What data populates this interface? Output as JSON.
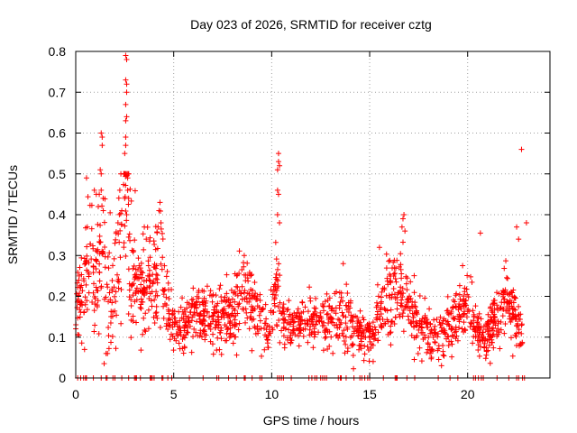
{
  "chart_data": {
    "type": "scatter",
    "title": "Day 023 of 2026, SRMTID for receiver cztg",
    "xlabel": "GPS time / hours",
    "ylabel": "SRMTID / TECUs",
    "xlim": [
      0,
      24.2
    ],
    "ylim": [
      0,
      0.8
    ],
    "xticks": [
      0,
      5,
      10,
      15,
      20
    ],
    "xtick_labels": [
      "0",
      "5",
      "10",
      "15",
      "20"
    ],
    "yticks": [
      0,
      0.1,
      0.2,
      0.3,
      0.4,
      0.5,
      0.6,
      0.7,
      0.8
    ],
    "ytick_labels": [
      "0",
      "0.1",
      "0.2",
      "0.3",
      "0.4",
      "0.5",
      "0.6",
      "0.7",
      "0.8"
    ],
    "grid": true,
    "series": [
      {
        "name": "SRMTID",
        "marker": "+",
        "color": "#ff0000",
        "profile": [
          [
            0.0,
            0.15,
            0.07
          ],
          [
            0.3,
            0.2,
            0.09
          ],
          [
            0.7,
            0.3,
            0.12
          ],
          [
            1.0,
            0.22,
            0.1
          ],
          [
            1.4,
            0.35,
            0.15
          ],
          [
            1.7,
            0.18,
            0.1
          ],
          [
            2.0,
            0.25,
            0.12
          ],
          [
            2.3,
            0.38,
            0.18
          ],
          [
            2.6,
            0.45,
            0.22
          ],
          [
            2.9,
            0.25,
            0.12
          ],
          [
            3.3,
            0.2,
            0.1
          ],
          [
            3.8,
            0.22,
            0.1
          ],
          [
            4.3,
            0.28,
            0.12
          ],
          [
            4.6,
            0.18,
            0.06
          ],
          [
            5.0,
            0.12,
            0.05
          ],
          [
            5.5,
            0.14,
            0.05
          ],
          [
            6.0,
            0.16,
            0.06
          ],
          [
            7.0,
            0.15,
            0.06
          ],
          [
            8.0,
            0.15,
            0.06
          ],
          [
            8.5,
            0.22,
            0.08
          ],
          [
            9.0,
            0.18,
            0.06
          ],
          [
            9.5,
            0.17,
            0.06
          ],
          [
            9.8,
            0.1,
            0.04
          ],
          [
            10.3,
            0.25,
            0.1
          ],
          [
            10.6,
            0.13,
            0.05
          ],
          [
            11.5,
            0.14,
            0.05
          ],
          [
            12.5,
            0.14,
            0.05
          ],
          [
            13.5,
            0.15,
            0.06
          ],
          [
            14.3,
            0.12,
            0.05
          ],
          [
            14.8,
            0.1,
            0.04
          ],
          [
            15.2,
            0.12,
            0.05
          ],
          [
            16.0,
            0.2,
            0.08
          ],
          [
            16.5,
            0.24,
            0.1
          ],
          [
            17.0,
            0.18,
            0.08
          ],
          [
            17.5,
            0.14,
            0.06
          ],
          [
            18.0,
            0.11,
            0.05
          ],
          [
            18.5,
            0.1,
            0.05
          ],
          [
            19.0,
            0.12,
            0.05
          ],
          [
            19.5,
            0.15,
            0.06
          ],
          [
            20.0,
            0.18,
            0.07
          ],
          [
            20.5,
            0.12,
            0.05
          ],
          [
            21.0,
            0.1,
            0.05
          ],
          [
            21.5,
            0.15,
            0.06
          ],
          [
            22.0,
            0.2,
            0.08
          ],
          [
            22.5,
            0.14,
            0.06
          ],
          [
            22.8,
            0.12,
            0.05
          ]
        ],
        "outliers": [
          [
            2.55,
            0.79
          ],
          [
            2.6,
            0.78
          ],
          [
            2.55,
            0.73
          ],
          [
            2.6,
            0.72
          ],
          [
            2.6,
            0.7
          ],
          [
            2.55,
            0.67
          ],
          [
            2.6,
            0.64
          ],
          [
            2.55,
            0.63
          ],
          [
            2.55,
            0.59
          ],
          [
            2.55,
            0.57
          ],
          [
            2.5,
            0.55
          ],
          [
            2.65,
            0.49
          ],
          [
            2.65,
            0.46
          ],
          [
            2.7,
            0.44
          ],
          [
            2.6,
            0.4
          ],
          [
            1.3,
            0.6
          ],
          [
            1.35,
            0.59
          ],
          [
            1.35,
            0.57
          ],
          [
            1.25,
            0.51
          ],
          [
            1.3,
            0.5
          ],
          [
            1.3,
            0.46
          ],
          [
            1.2,
            0.45
          ],
          [
            1.4,
            0.44
          ],
          [
            0.55,
            0.49
          ],
          [
            0.95,
            0.46
          ],
          [
            1.05,
            0.45
          ],
          [
            1.15,
            0.42
          ],
          [
            2.25,
            0.46
          ],
          [
            2.35,
            0.41
          ],
          [
            10.35,
            0.55
          ],
          [
            10.35,
            0.53
          ],
          [
            10.4,
            0.52
          ],
          [
            10.3,
            0.51
          ],
          [
            10.3,
            0.46
          ],
          [
            10.35,
            0.45
          ],
          [
            10.3,
            0.4
          ],
          [
            10.4,
            0.38
          ],
          [
            4.3,
            0.43
          ],
          [
            4.25,
            0.41
          ],
          [
            4.35,
            0.38
          ],
          [
            4.2,
            0.37
          ],
          [
            16.75,
            0.4
          ],
          [
            16.7,
            0.39
          ],
          [
            16.65,
            0.37
          ],
          [
            16.8,
            0.36
          ],
          [
            20.65,
            0.355
          ],
          [
            22.75,
            0.56
          ],
          [
            23.0,
            0.38
          ],
          [
            22.5,
            0.37
          ],
          [
            22.6,
            0.34
          ],
          [
            1.45,
            0.035
          ],
          [
            1.55,
            0.06
          ],
          [
            0.45,
            0.07
          ],
          [
            2.0,
            0.33
          ],
          [
            3.5,
            0.37
          ],
          [
            3.6,
            0.34
          ],
          [
            8.6,
            0.3
          ],
          [
            13.65,
            0.28
          ],
          [
            15.5,
            0.32
          ]
        ],
        "zero_hours": [
          0.1,
          0.25,
          0.4,
          0.5,
          0.55,
          0.9,
          1.3,
          1.55,
          1.6,
          1.9,
          2.0,
          2.35,
          2.7,
          3.0,
          3.05,
          3.1,
          3.3,
          3.8,
          3.85,
          3.9,
          4.0,
          4.4,
          4.45,
          4.7,
          4.9,
          5.8,
          6.5,
          7.2,
          7.3,
          7.8,
          8.2,
          8.6,
          8.65,
          9.0,
          9.4,
          9.5,
          10.3,
          10.4,
          10.5,
          10.6,
          11.0,
          11.9,
          12.05,
          12.2,
          12.3,
          12.5,
          12.6,
          12.7,
          12.8,
          13.4,
          13.5,
          13.55,
          13.8,
          14.2,
          14.5,
          14.6,
          14.75,
          14.9,
          15.0,
          15.7,
          16.3,
          16.35,
          16.4,
          16.9,
          17.3,
          18.5,
          19.1,
          19.5,
          20.3,
          20.4,
          20.55,
          20.7,
          20.8,
          21.5,
          22.1,
          22.5,
          22.6,
          22.8,
          22.9
        ],
        "point_count": 1700,
        "seed": 23
      }
    ]
  }
}
